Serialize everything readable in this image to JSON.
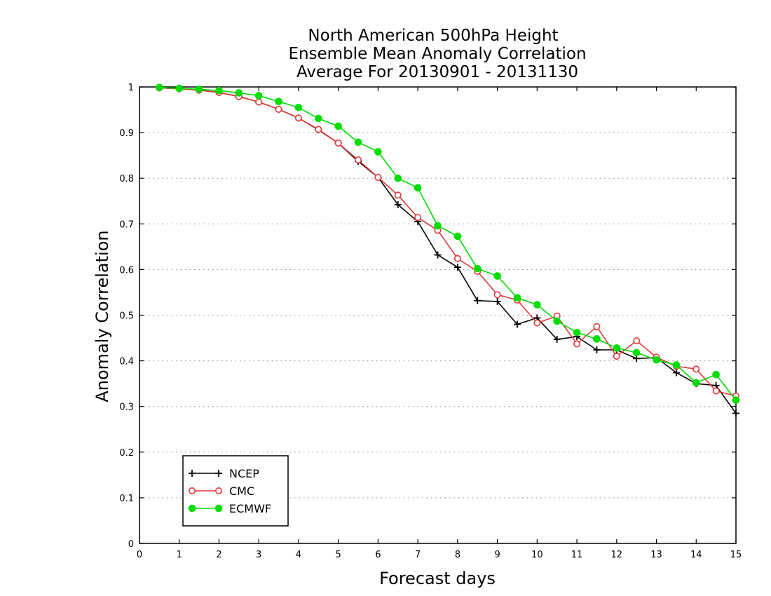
{
  "chart_data": {
    "type": "line",
    "title": "North American 500hPa Height",
    "subtitle": "Ensemble Mean Anomaly Correlation",
    "subtitle2": "Average For 20130901 - 20131130",
    "xlabel": "Forecast days",
    "ylabel": "Anomaly Correlation",
    "xlim": [
      0,
      15
    ],
    "ylim": [
      0,
      1
    ],
    "xticks": [
      "0",
      "1",
      "2",
      "3",
      "4",
      "5",
      "6",
      "7",
      "8",
      "9",
      "10",
      "11",
      "12",
      "13",
      "14",
      "15"
    ],
    "yticks": [
      "0",
      "0.1",
      "0.2",
      "0.3",
      "0.4",
      "0.5",
      "0.6",
      "0.7",
      "0.8",
      "0.9",
      "1"
    ],
    "grid": "horizontal dotted",
    "legend_position": "bottom-left",
    "series": [
      {
        "name": "NCEP",
        "color": "#000000",
        "marker": "plus",
        "x": [
          0.5,
          1,
          1.5,
          2,
          2.5,
          3,
          3.5,
          4,
          4.5,
          5,
          5.5,
          6,
          6.5,
          7,
          7.5,
          8,
          8.5,
          9,
          9.5,
          10,
          10.5,
          11,
          11.5,
          12,
          12.5,
          13,
          13.5,
          14,
          14.5,
          15
        ],
        "y": [
          0.998,
          0.996,
          0.993,
          0.988,
          0.979,
          0.967,
          0.951,
          0.932,
          0.906,
          0.877,
          0.837,
          0.802,
          0.742,
          0.705,
          0.632,
          0.605,
          0.532,
          0.53,
          0.48,
          0.494,
          0.447,
          0.453,
          0.424,
          0.424,
          0.405,
          0.407,
          0.374,
          0.35,
          0.346,
          0.285
        ]
      },
      {
        "name": "CMC",
        "color": "#e03a3a",
        "marker": "open-circle",
        "x": [
          0.5,
          1,
          1.5,
          2,
          2.5,
          3,
          3.5,
          4,
          4.5,
          5,
          5.5,
          6,
          6.5,
          7,
          7.5,
          8,
          8.5,
          9,
          9.5,
          10,
          10.5,
          11,
          11.5,
          12,
          12.5,
          13,
          13.5,
          14,
          14.5,
          15
        ],
        "y": [
          0.998,
          0.996,
          0.993,
          0.988,
          0.979,
          0.967,
          0.951,
          0.932,
          0.907,
          0.877,
          0.84,
          0.802,
          0.763,
          0.714,
          0.686,
          0.624,
          0.596,
          0.545,
          0.533,
          0.483,
          0.498,
          0.437,
          0.475,
          0.41,
          0.444,
          0.408,
          0.388,
          0.382,
          0.334,
          0.323
        ]
      },
      {
        "name": "ECMWF",
        "color": "#00dd00",
        "marker": "filled-circle",
        "x": [
          0.5,
          1,
          1.5,
          2,
          2.5,
          3,
          3.5,
          4,
          4.5,
          5,
          5.5,
          6,
          6.5,
          7,
          7.5,
          8,
          8.5,
          9,
          9.5,
          10,
          10.5,
          11,
          11.5,
          12,
          12.5,
          13,
          13.5,
          14,
          14.5,
          15
        ],
        "y": [
          0.999,
          0.997,
          0.995,
          0.992,
          0.987,
          0.981,
          0.968,
          0.955,
          0.931,
          0.914,
          0.879,
          0.858,
          0.8,
          0.779,
          0.696,
          0.673,
          0.602,
          0.586,
          0.538,
          0.523,
          0.487,
          0.462,
          0.448,
          0.428,
          0.418,
          0.402,
          0.391,
          0.352,
          0.37,
          0.314
        ]
      }
    ]
  }
}
